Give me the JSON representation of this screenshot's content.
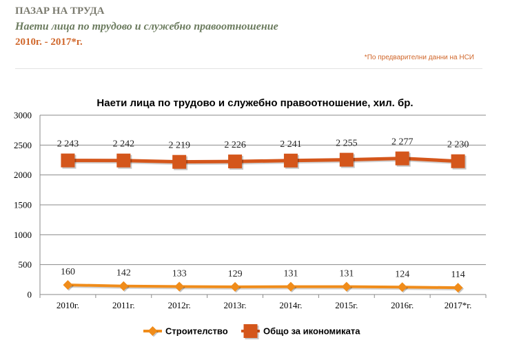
{
  "header": {
    "section": "ПАЗАР НА ТРУДА",
    "subtitle": "Наети лица по трудово и служебно правоотношение",
    "period": "2010г. - 2017*г.",
    "note": "*По предварителни данни на НСИ"
  },
  "chart_data": {
    "type": "line",
    "title": "Наети лица по трудово и служебно правоотношение, хил. бр.",
    "categories": [
      "2010г.",
      "2011г.",
      "2012г.",
      "2013г.",
      "2014г.",
      "2015г.",
      "2016г.",
      "2017*г."
    ],
    "ylim": [
      0,
      3000
    ],
    "yticks": [
      0,
      500,
      1000,
      1500,
      2000,
      2500,
      3000
    ],
    "grid": true,
    "legend_position": "bottom",
    "series": [
      {
        "name": "Строителство",
        "values": [
          160,
          142,
          133,
          129,
          131,
          131,
          124,
          114
        ],
        "labels": [
          "160",
          "142",
          "133",
          "129",
          "131",
          "131",
          "124",
          "114"
        ],
        "color": "#f08c1a",
        "marker": "diamond"
      },
      {
        "name": "Общо за икономиката",
        "values": [
          2243,
          2242,
          2219,
          2226,
          2241,
          2255,
          2277,
          2230
        ],
        "labels": [
          "2 243",
          "2 242",
          "2 219",
          "2 226",
          "2 241",
          "2 255",
          "2 277",
          "2 230"
        ],
        "color": "#d4561b",
        "marker": "square"
      }
    ]
  }
}
